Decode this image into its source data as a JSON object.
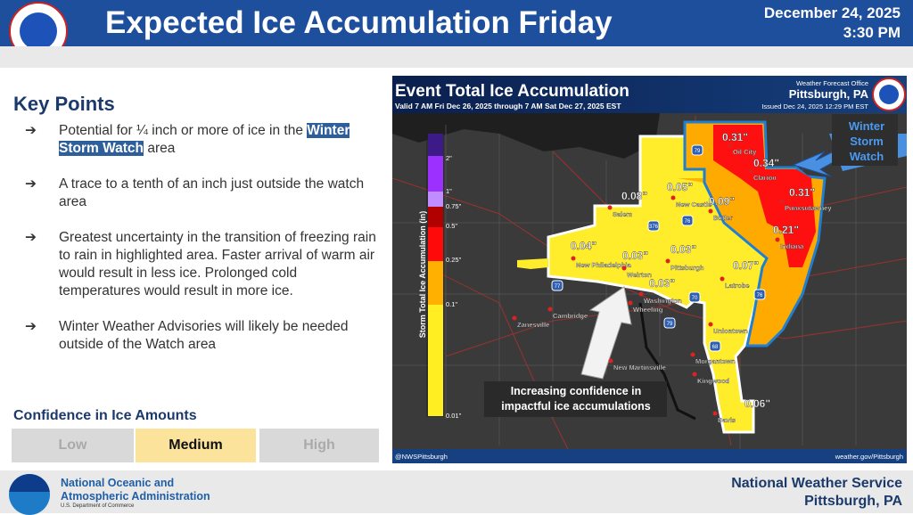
{
  "header": {
    "title": "Expected Ice Accumulation Friday",
    "date": "December 24, 2025",
    "time": "3:30 PM",
    "logo_text": "NATIONAL WEATHER SERVICE"
  },
  "key_points": {
    "title": "Key Points",
    "arrow": "➔",
    "items": [
      {
        "pre": "Potential for ¼ inch or more of ice in the ",
        "highlight": "Winter Storm Watch",
        "post": " area"
      },
      {
        "pre": "A trace to a tenth of an inch just outside the watch area"
      },
      {
        "pre": "Greatest uncertainty in the transition of freezing rain to rain in highlighted area. Faster arrival of warm air would result in less ice. Prolonged cold temperatures would result in more ice."
      },
      {
        "pre": "Winter Weather Advisories will likely be needed outside of the Watch area"
      }
    ]
  },
  "confidence": {
    "title": "Confidence in Ice Amounts",
    "levels": [
      "Low",
      "Medium",
      "High"
    ],
    "selected": "Medium",
    "colors": {
      "selected": "#fce39b",
      "unselected": "#d9d9d9"
    }
  },
  "map": {
    "title": "Event Total Ice Accumulation",
    "valid": "Valid 7 AM Fri Dec 26, 2025 through 7 AM Sat Dec 27, 2025 EST",
    "office_label": "Weather Forecast Office",
    "office": "Pittsburgh, PA",
    "issued": "Issued Dec 24, 2025 12:29 PM EST",
    "legend_title": "Storm Total Ice Accumulation (in)",
    "legend_ticks": [
      "2\"",
      "1\"",
      "0.75\"",
      "0.5\"",
      "0.25\"",
      "0.1\"",
      "0.01\""
    ],
    "values": [
      "0.31\"",
      "0.34\"",
      "0.31\"",
      "0.21\"",
      "0.05\"",
      "0.09\"",
      "0.08\"",
      "0.04\"",
      "0.03\"",
      "0.03\"",
      "0.03\"",
      "0.07\"",
      "0.06\""
    ],
    "cities": [
      "Oil City",
      "Clarion",
      "Punxsutawney",
      "Indiana",
      "New Castle",
      "Butler",
      "Salem",
      "New Philadelphia",
      "Weirton",
      "Pittsburgh",
      "Washington",
      "Latrobe",
      "Wheeling",
      "Cambridge",
      "Zanesville",
      "Uniontown",
      "Morgantown",
      "New Martinsville",
      "Kingwood",
      "Davis"
    ],
    "highways": [
      "79",
      "76",
      "376",
      "77",
      "70",
      "79",
      "68",
      "76"
    ],
    "watch_callout": "Winter Storm Watch",
    "confidence_callout": "Increasing confidence in impactful ice accumulations",
    "social": "@NWSPittsburgh",
    "website": "weather.gov/Pittsburgh"
  },
  "footer": {
    "noaa_line1": "National Oceanic and",
    "noaa_line2": "Atmospheric Administration",
    "noaa_sub": "U.S. Department of Commerce",
    "nws": "National Weather Service",
    "nws_loc": "Pittsburgh, PA"
  }
}
